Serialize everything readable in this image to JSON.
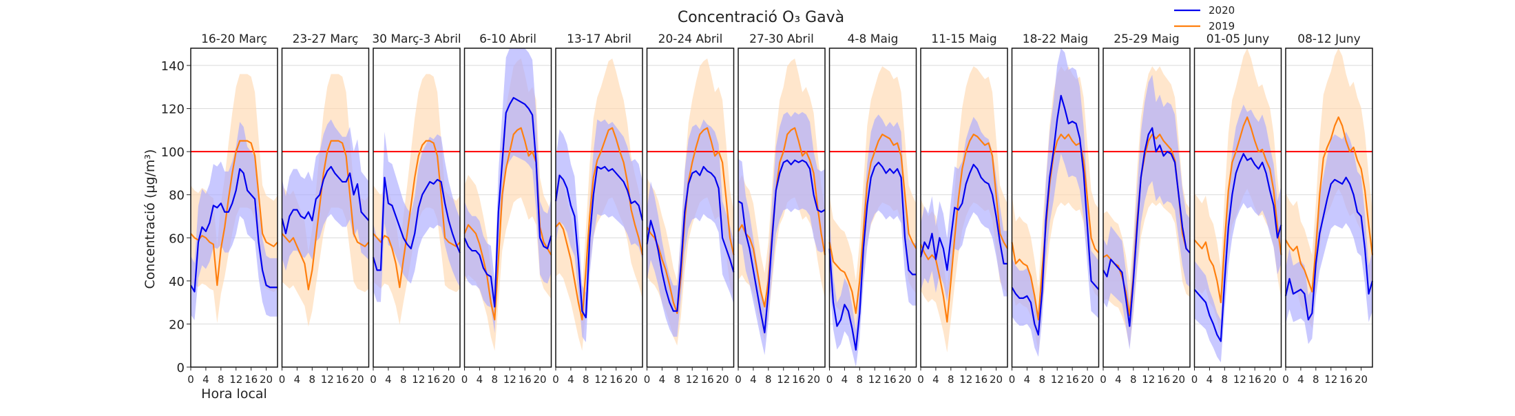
{
  "chart_data": {
    "type": "line",
    "title": "Concentració O₃ Gavà",
    "xlabel": "Hora local",
    "ylabel": "Concentració (µg/m³)",
    "ylim": [
      0,
      148
    ],
    "xlim": [
      0,
      23
    ],
    "yticks": [
      0,
      20,
      40,
      60,
      80,
      100,
      120,
      140
    ],
    "xticks": [
      0,
      4,
      8,
      12,
      16,
      20
    ],
    "hline": {
      "value": 100,
      "color": "#ff0000"
    },
    "grid": "horizontal",
    "legend_position": "top-right",
    "colors": {
      "2020": "#0000ee",
      "2019": "#ff7f0e",
      "band2020": "#aaaaff",
      "band2019": "#ffd8b0"
    },
    "series": [
      {
        "name": "2020"
      },
      {
        "name": "2019"
      }
    ],
    "panels": [
      {
        "label": "16-20 Març",
        "s2020": [
          38,
          35,
          58,
          65,
          63,
          67,
          75,
          74,
          76,
          72,
          72,
          76,
          82,
          92,
          90,
          82,
          80,
          78,
          58,
          45,
          38,
          37,
          37,
          37
        ],
        "s2019": [
          62,
          60,
          59,
          61,
          60,
          58,
          57,
          38,
          55,
          65,
          78,
          90,
          100,
          105,
          105,
          105,
          104,
          98,
          80,
          62,
          58,
          57,
          56,
          58
        ]
      },
      {
        "label": "23-27 Març",
        "s2020": [
          69,
          62,
          70,
          73,
          73,
          70,
          69,
          72,
          68,
          78,
          80,
          87,
          91,
          93,
          90,
          88,
          86,
          86,
          90,
          80,
          85,
          72,
          70,
          68
        ],
        "s2019": [
          62,
          60,
          58,
          60,
          56,
          52,
          48,
          36,
          45,
          60,
          75,
          90,
          100,
          105,
          105,
          105,
          104,
          98,
          80,
          62,
          58,
          57,
          56,
          58
        ]
      },
      {
        "label": "30 Març-3 Abril",
        "s2020": [
          51,
          45,
          45,
          88,
          76,
          75,
          70,
          65,
          60,
          57,
          55,
          62,
          74,
          80,
          83,
          86,
          85,
          87,
          86,
          76,
          68,
          62,
          57,
          53
        ],
        "s2019": [
          62,
          60,
          58,
          61,
          60,
          55,
          48,
          37,
          50,
          62,
          75,
          88,
          98,
          103,
          105,
          105,
          104,
          98,
          80,
          60,
          58,
          57,
          56,
          58
        ]
      },
      {
        "label": "6-10 Abril",
        "s2020": [
          60,
          56,
          54,
          54,
          52,
          46,
          43,
          42,
          28,
          72,
          95,
          118,
          122,
          125,
          124,
          123,
          122,
          120,
          117,
          95,
          60,
          56,
          55,
          61
        ],
        "s2019": [
          62,
          66,
          64,
          62,
          57,
          50,
          42,
          30,
          22,
          50,
          80,
          92,
          100,
          108,
          110,
          111,
          105,
          98,
          100,
          95,
          65,
          58,
          55,
          52
        ]
      },
      {
        "label": "13-17 Abril",
        "s2020": [
          77,
          89,
          87,
          83,
          75,
          70,
          50,
          26,
          23,
          60,
          80,
          93,
          92,
          93,
          91,
          92,
          90,
          88,
          86,
          82,
          76,
          77,
          75,
          68
        ],
        "s2019": [
          65,
          67,
          64,
          57,
          50,
          40,
          30,
          22,
          45,
          70,
          88,
          96,
          100,
          105,
          110,
          111,
          106,
          100,
          95,
          86,
          73,
          66,
          60,
          52
        ]
      },
      {
        "label": "20-24 Abril",
        "s2020": [
          57,
          68,
          62,
          54,
          44,
          36,
          30,
          26,
          26,
          47,
          72,
          85,
          90,
          91,
          89,
          93,
          91,
          90,
          88,
          83,
          60,
          55,
          50,
          44
        ],
        "s2019": [
          65,
          62,
          60,
          56,
          50,
          45,
          38,
          30,
          25,
          42,
          68,
          86,
          95,
          102,
          108,
          110,
          111,
          105,
          98,
          100,
          95,
          78,
          60,
          52
        ]
      },
      {
        "label": "27-30 Abril",
        "s2020": [
          77,
          76,
          62,
          55,
          45,
          35,
          25,
          16,
          35,
          60,
          82,
          90,
          95,
          96,
          94,
          96,
          95,
          96,
          95,
          92,
          80,
          73,
          72,
          73
        ],
        "s2019": [
          63,
          66,
          62,
          60,
          55,
          45,
          35,
          28,
          40,
          62,
          82,
          95,
          100,
          108,
          110,
          111,
          105,
          98,
          100,
          96,
          90,
          75,
          62,
          52
        ]
      },
      {
        "label": "4-8 Maig",
        "s2020": [
          55,
          30,
          19,
          22,
          29,
          26,
          18,
          8,
          25,
          55,
          75,
          88,
          93,
          95,
          93,
          90,
          92,
          90,
          92,
          88,
          60,
          45,
          43,
          43
        ],
        "s2019": [
          58,
          49,
          47,
          45,
          44,
          40,
          35,
          25,
          40,
          63,
          85,
          95,
          100,
          105,
          108,
          107,
          106,
          103,
          104,
          98,
          80,
          62,
          58,
          55
        ]
      },
      {
        "label": "11-15 Maig",
        "s2020": [
          51,
          58,
          55,
          62,
          50,
          60,
          55,
          45,
          60,
          74,
          73,
          76,
          85,
          90,
          94,
          92,
          88,
          86,
          85,
          80,
          70,
          58,
          48,
          48
        ],
        "s2019": [
          57,
          53,
          50,
          52,
          50,
          42,
          33,
          21,
          40,
          60,
          78,
          92,
          100,
          105,
          108,
          107,
          105,
          103,
          104,
          98,
          80,
          62,
          58,
          55
        ]
      },
      {
        "label": "18-22 Maig",
        "s2020": [
          37,
          34,
          32,
          32,
          33,
          30,
          20,
          15,
          35,
          68,
          88,
          100,
          115,
          126,
          120,
          113,
          114,
          113,
          106,
          90,
          65,
          40,
          38,
          36
        ],
        "s2019": [
          58,
          48,
          50,
          48,
          47,
          42,
          33,
          22,
          45,
          65,
          85,
          98,
          105,
          108,
          106,
          108,
          105,
          103,
          104,
          96,
          78,
          60,
          55,
          53
        ]
      },
      {
        "label": "25-29 Maig",
        "s2020": [
          45,
          42,
          50,
          48,
          46,
          44,
          32,
          19,
          40,
          65,
          88,
          100,
          108,
          111,
          100,
          103,
          98,
          100,
          99,
          95,
          80,
          65,
          55,
          53
        ],
        "s2019": [
          51,
          52,
          50,
          48,
          47,
          42,
          35,
          24,
          42,
          68,
          88,
          98,
          105,
          108,
          106,
          108,
          105,
          103,
          101,
          96,
          80,
          62,
          55,
          53
        ]
      },
      {
        "label": "01-05 Juny",
        "s2020": [
          36,
          34,
          32,
          30,
          24,
          20,
          15,
          12,
          40,
          65,
          80,
          90,
          95,
          99,
          96,
          97,
          94,
          92,
          95,
          90,
          82,
          75,
          60,
          66
        ],
        "s2019": [
          59,
          57,
          55,
          58,
          50,
          47,
          40,
          30,
          58,
          82,
          95,
          100,
          106,
          112,
          116,
          111,
          105,
          100,
          101,
          96,
          92,
          82,
          65,
          52
        ]
      },
      {
        "label": "08-12 Juny",
        "s2020": [
          33,
          41,
          34,
          35,
          36,
          34,
          22,
          25,
          48,
          62,
          70,
          78,
          85,
          87,
          86,
          85,
          88,
          85,
          80,
          72,
          70,
          55,
          34,
          40
        ],
        "s2019": [
          59,
          56,
          54,
          56,
          48,
          45,
          40,
          35,
          55,
          80,
          97,
          102,
          106,
          112,
          116,
          112,
          105,
          100,
          102,
          96,
          92,
          82,
          66,
          52
        ]
      }
    ]
  }
}
